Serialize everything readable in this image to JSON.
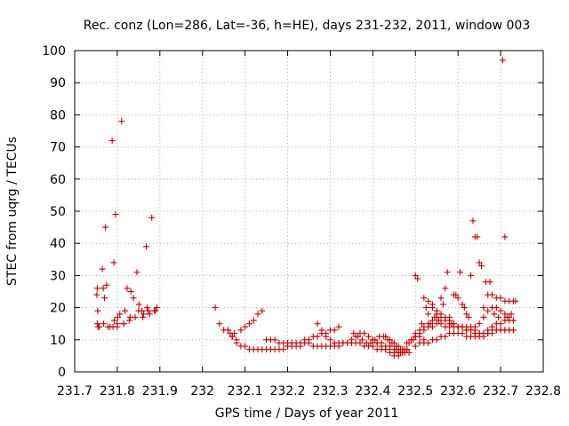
{
  "chart_data": {
    "type": "scatter",
    "title": "Rec. conz (Lon=286, Lat=-36, h=HE), days 231-232, 2011, window 003",
    "xlabel": "GPS time / Days of year 2011",
    "ylabel": "STEC from uqrg / TECUs",
    "xlim": [
      231.7,
      232.8
    ],
    "ylim": [
      0,
      100
    ],
    "xticks": [
      "231.7",
      "231.8",
      "231.9",
      "232",
      "232.1",
      "232.2",
      "232.3",
      "232.4",
      "232.5",
      "232.6",
      "232.7",
      "232.8"
    ],
    "yticks": [
      "0",
      "10",
      "20",
      "30",
      "40",
      "50",
      "60",
      "70",
      "80",
      "90",
      "100"
    ],
    "grid": true,
    "legend": "none",
    "marker": "plus",
    "color": "#cc0000",
    "series": [
      {
        "x": [
          231.752,
          231.753,
          231.754,
          231.753,
          231.755,
          231.758,
          231.765,
          231.767,
          231.768,
          231.772,
          231.775,
          231.778,
          231.783,
          231.788,
          231.792,
          231.793,
          231.796,
          231.8,
          231.801,
          231.806,
          231.81,
          231.815,
          231.818,
          231.823,
          231.828,
          231.832,
          231.838,
          231.842,
          231.846,
          231.851,
          231.858,
          231.86,
          231.862,
          231.868,
          231.873,
          231.876,
          231.881,
          231.887,
          231.893,
          231.77,
          231.79,
          231.8,
          231.815,
          231.83,
          231.85,
          231.87,
          231.89
        ],
        "y": [
          24,
          26,
          19,
          15,
          14,
          14,
          32,
          26,
          15,
          45,
          27,
          14,
          14,
          72,
          34,
          16,
          49,
          14,
          17,
          18,
          78,
          15,
          19,
          26,
          16,
          25,
          23,
          17,
          31,
          21,
          19,
          17,
          18,
          39,
          19,
          18,
          48,
          19,
          20,
          23,
          14,
          15,
          15,
          17,
          19,
          20,
          19
        ]
      },
      {
        "x": [
          232.03,
          232.04,
          232.05,
          232.06,
          232.065,
          232.07,
          232.075,
          232.08,
          232.09,
          232.1,
          232.11,
          232.12,
          232.13,
          232.14,
          232.15,
          232.06,
          232.07,
          232.08,
          232.09,
          232.1,
          232.11,
          232.12,
          232.13,
          232.14,
          232.15,
          232.16,
          232.17,
          232.18,
          232.19,
          232.2,
          232.21,
          232.22,
          232.23,
          232.24,
          232.25,
          232.16,
          232.17,
          232.18,
          232.19,
          232.2,
          232.21,
          232.22,
          232.23,
          232.24,
          232.25,
          232.26,
          232.27,
          232.28,
          232.29,
          232.3,
          232.31,
          232.32,
          232.33,
          232.34,
          232.35,
          232.36,
          232.37,
          232.38,
          232.39,
          232.4,
          232.41,
          232.42,
          232.43,
          232.44,
          232.45,
          232.455,
          232.46,
          232.465,
          232.47,
          232.475,
          232.48,
          232.27,
          232.28,
          232.29,
          232.3,
          232.31,
          232.32,
          232.26,
          232.27,
          232.28,
          232.29,
          232.3,
          232.31,
          232.32,
          232.33,
          232.34,
          232.35,
          232.36,
          232.37,
          232.38,
          232.39,
          232.4,
          232.41,
          232.42,
          232.43,
          232.44,
          232.45,
          232.46,
          232.47,
          232.355,
          232.365,
          232.375,
          232.385,
          232.395,
          232.405,
          232.415,
          232.425,
          232.435,
          232.445,
          232.455,
          232.465,
          232.475,
          232.485,
          232.4,
          232.41,
          232.42,
          232.43,
          232.44,
          232.45,
          232.46,
          232.47,
          232.43,
          232.44,
          232.45,
          232.46,
          232.47,
          232.48
        ],
        "y": [
          20,
          15,
          13,
          13,
          12,
          11,
          12,
          10,
          13,
          14,
          15,
          16,
          18,
          19,
          10,
          13,
          11,
          9,
          8,
          8,
          7,
          7,
          7,
          7,
          7,
          7,
          7,
          7,
          7,
          8,
          8,
          8,
          8,
          9,
          9,
          10,
          10,
          9,
          9,
          9,
          9,
          9,
          9,
          10,
          10,
          11,
          11,
          12,
          12,
          13,
          13,
          14,
          9,
          9,
          10,
          11,
          12,
          12,
          11,
          10,
          9,
          9,
          8,
          8,
          7,
          7,
          6,
          6,
          7,
          7,
          7,
          15,
          13,
          11,
          10,
          9,
          8,
          8,
          8,
          8,
          8,
          8,
          8,
          9,
          9,
          9,
          9,
          9,
          9,
          8,
          8,
          8,
          7,
          7,
          7,
          7,
          6,
          6,
          6,
          12,
          11,
          10,
          9,
          9,
          10,
          11,
          11,
          10,
          9,
          8,
          7,
          6,
          6,
          10,
          9,
          8,
          7,
          6,
          5,
          5,
          6,
          11,
          10,
          9,
          8,
          7,
          7
        ]
      },
      {
        "x": [
          232.48,
          232.485,
          232.49,
          232.495,
          232.5,
          232.505,
          232.51,
          232.515,
          232.52,
          232.525,
          232.53,
          232.535,
          232.54,
          232.545,
          232.55,
          232.555,
          232.56,
          232.565,
          232.57,
          232.575,
          232.58,
          232.585,
          232.59,
          232.595,
          232.6,
          232.605,
          232.61,
          232.615,
          232.62,
          232.625,
          232.63,
          232.635,
          232.64,
          232.645,
          232.65,
          232.655,
          232.66,
          232.665,
          232.67,
          232.675,
          232.68,
          232.685,
          232.69,
          232.695,
          232.7,
          232.705,
          232.71,
          232.715,
          232.72,
          232.725,
          232.73,
          232.735,
          232.5,
          232.51,
          232.52,
          232.53,
          232.54,
          232.55,
          232.56,
          232.57,
          232.58,
          232.59,
          232.6,
          232.61,
          232.62,
          232.63,
          232.64,
          232.65,
          232.66,
          232.67,
          232.68,
          232.69,
          232.7,
          232.71,
          232.72,
          232.73,
          232.5,
          232.51,
          232.52,
          232.53,
          232.54,
          232.55,
          232.56,
          232.57,
          232.58,
          232.59,
          232.6,
          232.61,
          232.62,
          232.63,
          232.64,
          232.65,
          232.66,
          232.67,
          232.68,
          232.69,
          232.7,
          232.71,
          232.72,
          232.73,
          232.5,
          232.51,
          232.52,
          232.53,
          232.54,
          232.55,
          232.56,
          232.57,
          232.58,
          232.59,
          232.6,
          232.61,
          232.62,
          232.63,
          232.64,
          232.65,
          232.66,
          232.67,
          232.68,
          232.69,
          232.7,
          232.71,
          232.72,
          232.73,
          232.64,
          232.65,
          232.66,
          232.67,
          232.68,
          232.69,
          232.7,
          232.71,
          232.72,
          232.73,
          232.53,
          232.54,
          232.55,
          232.56,
          232.57,
          232.58,
          232.59,
          232.6,
          232.61,
          232.62,
          232.63,
          232.64,
          232.5,
          232.51,
          232.52,
          232.7,
          232.71
        ],
        "y": [
          9,
          9,
          10,
          10,
          30,
          29,
          12,
          15,
          23,
          20,
          18,
          15,
          20,
          17,
          18,
          16,
          23,
          21,
          26,
          31,
          17,
          15,
          24,
          24,
          23,
          31,
          21,
          20,
          18,
          17,
          30,
          47,
          42,
          42,
          34,
          33,
          20,
          28,
          24,
          28,
          24,
          18,
          23,
          17,
          23,
          97,
          22,
          17,
          22,
          18,
          22,
          22,
          11,
          11,
          10,
          9,
          10,
          10,
          11,
          11,
          12,
          12,
          12,
          12,
          11,
          11,
          11,
          11,
          11,
          12,
          12,
          13,
          13,
          13,
          13,
          13,
          12,
          13,
          14,
          15,
          16,
          17,
          17,
          16,
          15,
          15,
          14,
          14,
          13,
          13,
          12,
          12,
          12,
          13,
          14,
          15,
          15,
          16,
          16,
          16,
          11,
          12,
          13,
          14,
          14,
          15,
          15,
          14,
          14,
          14,
          14,
          14,
          14,
          14,
          14,
          15,
          17,
          19,
          20,
          20,
          19,
          18,
          17,
          16,
          12,
          12,
          12,
          12,
          13,
          13,
          13,
          13,
          13,
          13,
          22,
          21,
          19,
          18,
          17,
          16,
          15,
          14,
          14,
          13,
          13,
          13,
          8,
          9,
          9,
          13,
          42
        ]
      }
    ]
  }
}
